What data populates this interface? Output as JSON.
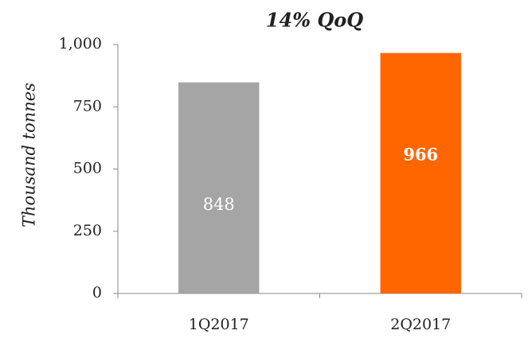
{
  "chart_data": {
    "type": "bar",
    "title": "14% QoQ",
    "y_label": "Thousand tonnes",
    "categories": [
      "1Q2017",
      "2Q2017"
    ],
    "values": [
      848,
      966
    ],
    "colors": [
      "#a5a5a5",
      "#ff6600"
    ],
    "ylim": [
      0,
      1000
    ],
    "yticks": [
      0,
      250,
      500,
      750,
      {
        "value": 1000,
        "label": "1,000"
      }
    ],
    "grid": false
  }
}
